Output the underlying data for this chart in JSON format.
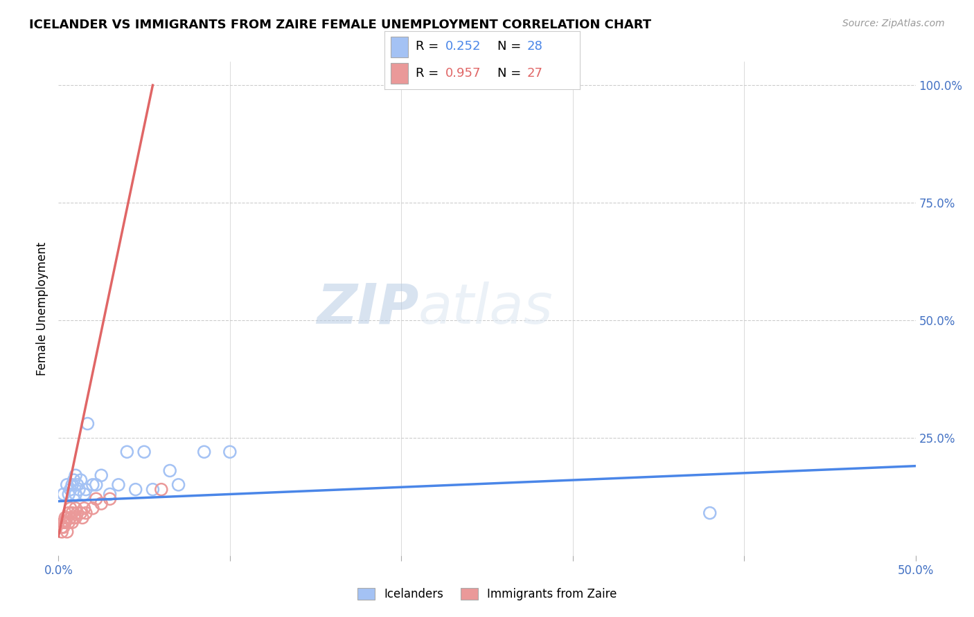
{
  "title": "ICELANDER VS IMMIGRANTS FROM ZAIRE FEMALE UNEMPLOYMENT CORRELATION CHART",
  "source": "Source: ZipAtlas.com",
  "ylabel": "Female Unemployment",
  "xlim": [
    0.0,
    0.5
  ],
  "ylim": [
    0.0,
    1.05
  ],
  "xtick_vals": [
    0.0,
    0.1,
    0.2,
    0.3,
    0.4,
    0.5
  ],
  "xtick_labels": [
    "0.0%",
    "",
    "",
    "",
    "",
    "50.0%"
  ],
  "ytick_vals": [
    0.25,
    0.5,
    0.75,
    1.0
  ],
  "ytick_labels": [
    "25.0%",
    "50.0%",
    "75.0%",
    "100.0%"
  ],
  "blue_R": "0.252",
  "blue_N": "28",
  "pink_R": "0.957",
  "pink_N": "27",
  "blue_color": "#a4c2f4",
  "pink_color": "#ea9999",
  "blue_line_color": "#4a86e8",
  "pink_line_color": "#e06666",
  "watermark_zip": "ZIP",
  "watermark_atlas": "atlas",
  "blue_scatter_x": [
    0.003,
    0.005,
    0.006,
    0.007,
    0.008,
    0.009,
    0.01,
    0.01,
    0.011,
    0.012,
    0.013,
    0.015,
    0.016,
    0.017,
    0.02,
    0.022,
    0.025,
    0.03,
    0.035,
    0.04,
    0.045,
    0.05,
    0.055,
    0.065,
    0.07,
    0.085,
    0.1,
    0.38
  ],
  "blue_scatter_y": [
    0.13,
    0.15,
    0.13,
    0.14,
    0.15,
    0.16,
    0.13,
    0.17,
    0.15,
    0.14,
    0.16,
    0.13,
    0.14,
    0.28,
    0.15,
    0.15,
    0.17,
    0.13,
    0.15,
    0.22,
    0.14,
    0.22,
    0.14,
    0.18,
    0.15,
    0.22,
    0.22,
    0.09
  ],
  "pink_scatter_x": [
    0.002,
    0.002,
    0.003,
    0.003,
    0.004,
    0.004,
    0.005,
    0.005,
    0.006,
    0.006,
    0.007,
    0.007,
    0.008,
    0.008,
    0.009,
    0.01,
    0.01,
    0.011,
    0.013,
    0.014,
    0.015,
    0.016,
    0.02,
    0.022,
    0.025,
    0.03,
    0.06
  ],
  "pink_scatter_y": [
    0.05,
    0.06,
    0.06,
    0.07,
    0.07,
    0.08,
    0.05,
    0.08,
    0.07,
    0.09,
    0.08,
    0.1,
    0.07,
    0.09,
    0.08,
    0.08,
    0.1,
    0.09,
    0.09,
    0.08,
    0.1,
    0.09,
    0.1,
    0.12,
    0.11,
    0.12,
    0.14
  ],
  "blue_trend_x": [
    0.0,
    0.5
  ],
  "blue_trend_y": [
    0.115,
    0.19
  ],
  "pink_trend_x": [
    0.0,
    0.055
  ],
  "pink_trend_y": [
    0.04,
    1.0
  ],
  "background_color": "#ffffff",
  "grid_color": "#cccccc"
}
